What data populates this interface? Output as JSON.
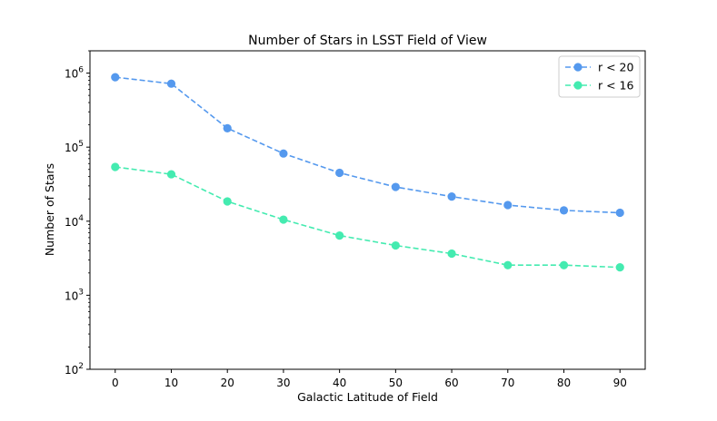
{
  "chart_data": {
    "type": "line",
    "title": "Number of Stars in LSST Field of View",
    "xlabel": "Galactic Latitude of Field",
    "ylabel": "Number of Stars",
    "yscale": "log",
    "x": [
      0,
      10,
      20,
      30,
      40,
      50,
      60,
      70,
      80,
      90
    ],
    "x_ticks": [
      0,
      10,
      20,
      30,
      40,
      50,
      60,
      70,
      80,
      90
    ],
    "xlim": [
      -4.5,
      94.5
    ],
    "ylim": [
      100,
      2000000
    ],
    "y_ticks": [
      {
        "value": 100,
        "base": "10",
        "exp": "2"
      },
      {
        "value": 1000,
        "base": "10",
        "exp": "3"
      },
      {
        "value": 10000,
        "base": "10",
        "exp": "4"
      },
      {
        "value": 100000,
        "base": "10",
        "exp": "5"
      },
      {
        "value": 1000000,
        "base": "10",
        "exp": "6"
      }
    ],
    "series": [
      {
        "name": "r < 20",
        "color": "#5599ee",
        "values": [
          880000,
          720000,
          180000,
          82000,
          45000,
          29000,
          21500,
          16500,
          14000,
          13000
        ]
      },
      {
        "name": "r < 16",
        "color": "#44ebb0",
        "values": [
          54000,
          43000,
          18500,
          10500,
          6400,
          4700,
          3650,
          2550,
          2550,
          2380
        ]
      }
    ],
    "legend_position": "top-right",
    "grid": false
  }
}
